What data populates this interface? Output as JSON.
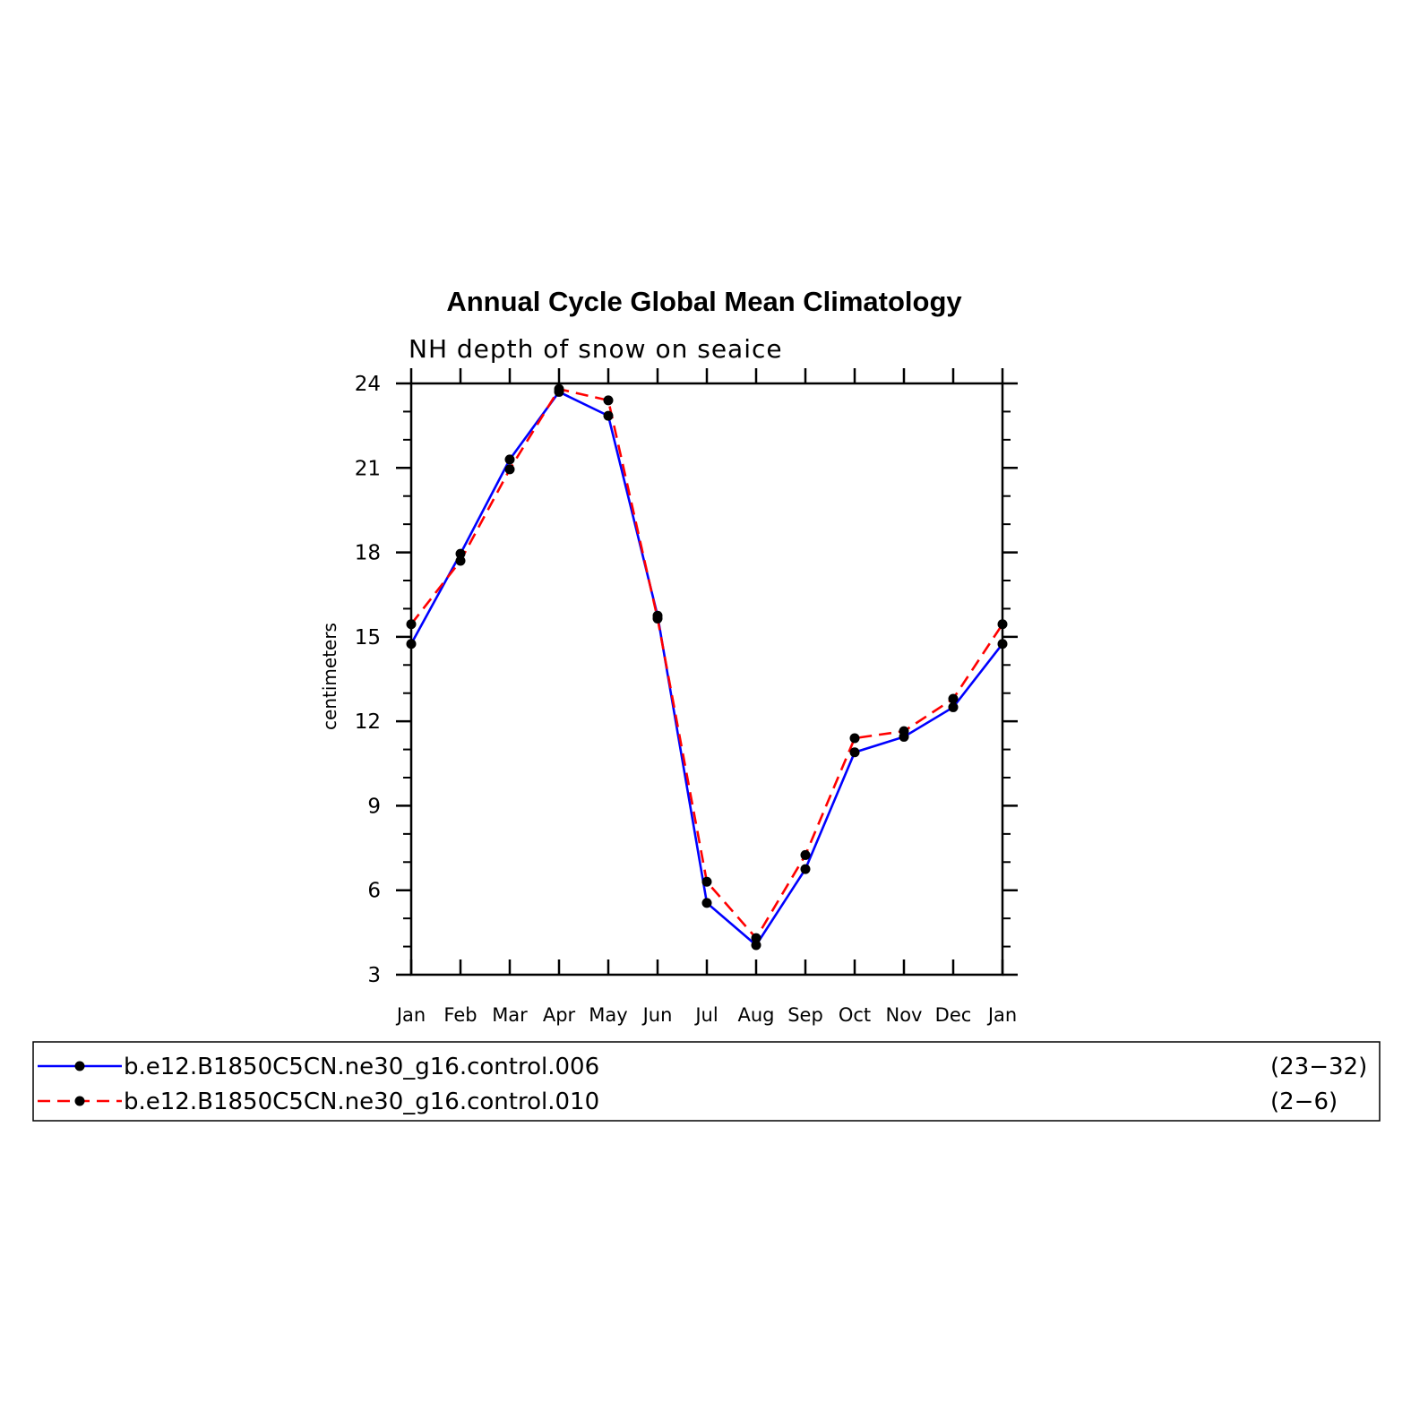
{
  "chart_data": {
    "type": "line",
    "title": "Annual Cycle Global Mean Climatology",
    "subtitle": "NH depth of snow on seaice",
    "ylabel": "centimeters",
    "xlabel": "",
    "categories": [
      "Jan",
      "Feb",
      "Mar",
      "Apr",
      "May",
      "Jun",
      "Jul",
      "Aug",
      "Sep",
      "Oct",
      "Nov",
      "Dec",
      "Jan"
    ],
    "ylim": [
      3,
      24
    ],
    "yticks": [
      3,
      6,
      9,
      12,
      15,
      18,
      21,
      24
    ],
    "grid": false,
    "legend_position": "bottom",
    "series": [
      {
        "name": "b.e12.B1850C5CN.ne30_g16.control.006",
        "range": "(23−32)",
        "color": "#0000ff",
        "style": "solid",
        "values": [
          14.75,
          17.95,
          21.3,
          23.7,
          22.85,
          15.75,
          5.55,
          4.05,
          6.75,
          10.9,
          11.45,
          12.5,
          14.75
        ]
      },
      {
        "name": "b.e12.B1850C5CN.ne30_g16.control.010",
        "range": "(2−6)",
        "color": "#ff0000",
        "style": "dashed",
        "values": [
          15.45,
          17.7,
          20.95,
          23.8,
          23.4,
          15.65,
          6.3,
          4.3,
          7.25,
          11.4,
          11.65,
          12.8,
          15.45
        ]
      }
    ]
  }
}
